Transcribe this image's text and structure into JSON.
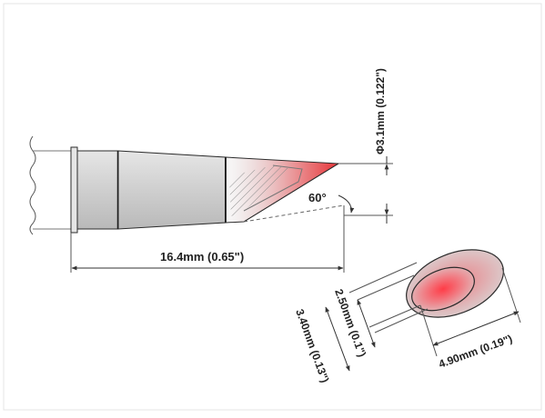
{
  "drawing": {
    "diameter_label": "Φ3.1mm (0.122\")",
    "angle_label": "60°",
    "length_label": "16.4mm (0.65\")",
    "face_major_label": "4.90mm (0.19\")",
    "face_minor_outer_label": "3.40mm (0.13\")",
    "face_minor_inner_label": "2.50mm (0.1\")"
  },
  "colors": {
    "tip_red": "#e8363a",
    "body_gray": "#c9c9c9",
    "outline": "#2b2b2b",
    "dimension_line": "#333333"
  }
}
